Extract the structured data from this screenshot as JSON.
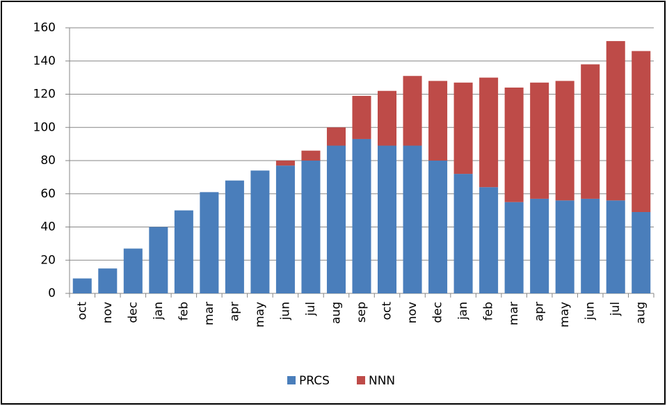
{
  "chart_data": {
    "type": "stacked-bar",
    "categories": [
      "oct",
      "nov",
      "dec",
      "jan",
      "feb",
      "mar",
      "apr",
      "may",
      "jun",
      "jul",
      "aug",
      "sep",
      "oct",
      "nov",
      "dec",
      "jan",
      "feb",
      "mar",
      "apr",
      "may",
      "jun",
      "jul",
      "aug"
    ],
    "series": [
      {
        "name": "PRCS",
        "color": "#4a7ebb",
        "values": [
          9,
          15,
          27,
          40,
          50,
          61,
          68,
          74,
          77,
          80,
          89,
          93,
          89,
          89,
          80,
          72,
          64,
          55,
          57,
          56,
          57,
          56,
          49
        ]
      },
      {
        "name": "NNN",
        "color": "#be4b48",
        "values": [
          0,
          0,
          0,
          0,
          0,
          0,
          0,
          0,
          3,
          6,
          11,
          26,
          33,
          42,
          48,
          55,
          66,
          69,
          70,
          72,
          81,
          96,
          97
        ]
      }
    ],
    "ylim": [
      0,
      160
    ],
    "yticks": [
      0,
      20,
      40,
      60,
      80,
      100,
      120,
      140,
      160
    ],
    "grid": true,
    "legend": "bottom"
  }
}
